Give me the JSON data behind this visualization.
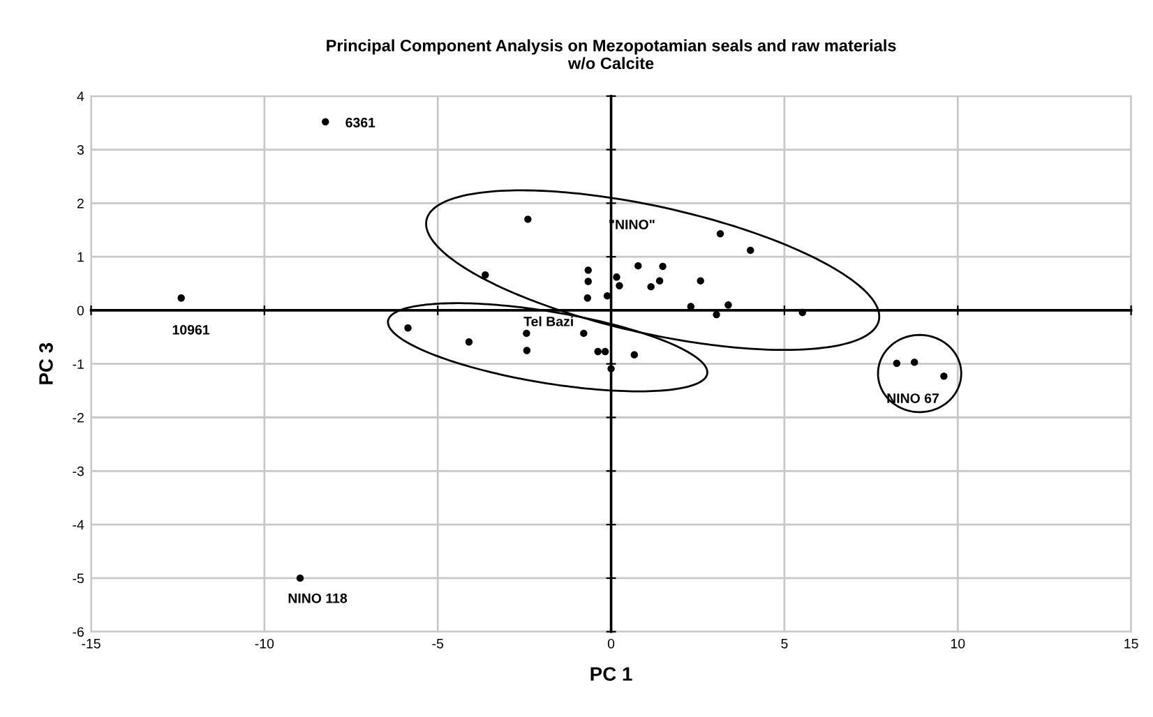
{
  "chart_data": {
    "type": "scatter",
    "title": "Principal Component Analysis on Mezopotamian seals and raw materials\nw/o Calcite",
    "xlabel": "PC 1",
    "ylabel": "PC 3",
    "x": [
      -8.24,
      -12.4,
      -8.97,
      -2.4,
      -3.63,
      -0.66,
      -0.66,
      -0.68,
      -0.11,
      0.16,
      0.24,
      0.78,
      1.49,
      1.4,
      1.15,
      2.58,
      3.15,
      4.02,
      2.3,
      3.38,
      3.04,
      5.52,
      -5.86,
      -4.1,
      -2.44,
      -2.43,
      -0.79,
      -0.38,
      -0.17,
      0.67,
      0.0,
      8.24,
      8.75,
      9.6
    ],
    "values": [
      3.52,
      0.23,
      -5.0,
      1.7,
      0.66,
      0.75,
      0.54,
      0.23,
      0.27,
      0.62,
      0.46,
      0.83,
      0.82,
      0.55,
      0.44,
      0.55,
      1.43,
      1.12,
      0.07,
      0.1,
      -0.08,
      -0.04,
      -0.33,
      -0.59,
      -0.43,
      -0.75,
      -0.43,
      -0.77,
      -0.77,
      -0.83,
      -1.09,
      -0.99,
      -0.97,
      -1.23
    ],
    "color": "#000000",
    "marker": "circle",
    "xlim": [
      -15,
      15
    ],
    "xticks": [
      -15,
      -10,
      -5,
      0,
      5,
      10,
      15
    ],
    "ylim": [
      -6,
      4
    ],
    "yticks": [
      -6,
      -5,
      -4,
      -3,
      -2,
      -1,
      0,
      1,
      2,
      3,
      4
    ],
    "grid": true,
    "annotations": [
      {
        "text": "6361",
        "x": -8.24,
        "y": 3.52
      },
      {
        "text": "10961",
        "x": -12.4,
        "y": 0.23
      },
      {
        "text": "NINO 118",
        "x": -8.97,
        "y": -5.0
      },
      {
        "text": "NINO 67",
        "x": 9.6,
        "y": -1.23
      },
      "Tel Bazi",
      "\"NINO\""
    ]
  }
}
